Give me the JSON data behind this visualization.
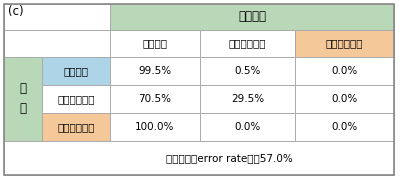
{
  "title_c": "(c)",
  "header_top": "分析結果",
  "col_headers": [
    "ブラジル",
    "モザンビーク",
    "ナイジェリア"
  ],
  "row_label_outer": "真\n値",
  "row_headers": [
    "ブラジル",
    "モザンビーク",
    "ナイジェリア"
  ],
  "data": [
    [
      "99.5%",
      "0.5%",
      "0.0%"
    ],
    [
      "70.5%",
      "29.5%",
      "0.0%"
    ],
    [
      "100.0%",
      "0.0%",
      "0.0%"
    ]
  ],
  "footer": "誤判別率（error rate）＝57.0%",
  "color_green_light": "#b8d8b8",
  "color_blue_light": "#aed4e8",
  "color_orange_light": "#f5c89a",
  "color_white": "#ffffff",
  "color_border": "#aaaaaa"
}
